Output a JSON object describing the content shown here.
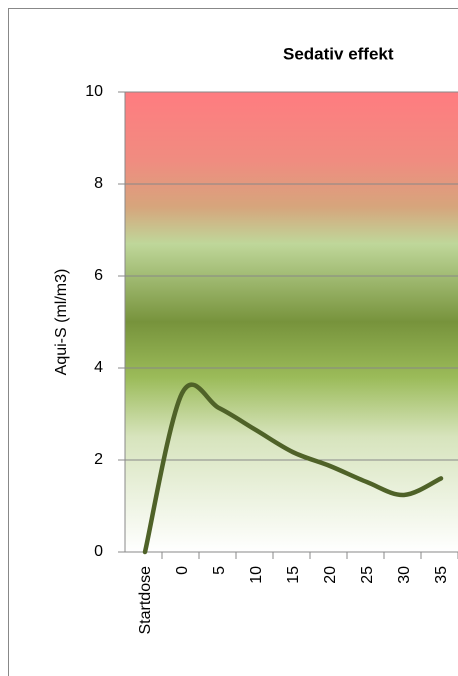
{
  "chart_data": {
    "type": "line",
    "title": "Sedativ effekt",
    "y_label": "Aqui-S (ml/m3)",
    "categories": [
      "Startdose",
      "0",
      "5",
      "10",
      "15",
      "20",
      "25",
      "30",
      "35"
    ],
    "values": [
      0,
      3.45,
      3.13,
      2.65,
      2.17,
      1.87,
      1.52,
      1.24,
      1.6
    ],
    "color": "#4f6228",
    "ylim": [
      0,
      10
    ],
    "yticks": [
      0,
      2,
      4,
      6,
      8,
      10
    ],
    "grid": true,
    "smooth": true
  }
}
